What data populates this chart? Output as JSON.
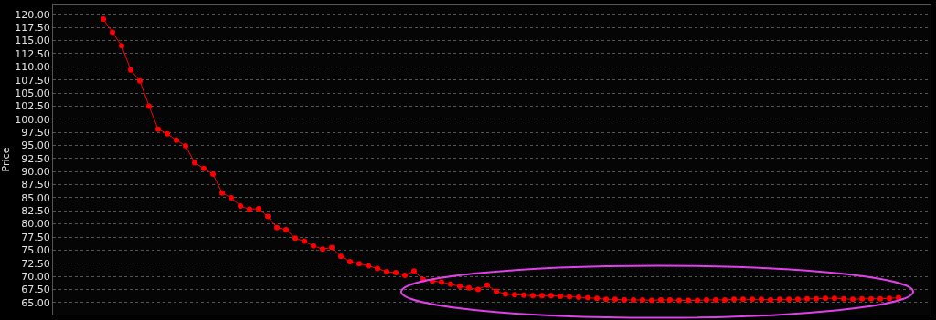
{
  "chart_data": {
    "type": "line",
    "ylabel": "Price",
    "marker": "circle",
    "line_style": "solid",
    "grid": "y",
    "tick_labels": "y",
    "ylim": [
      62.7,
      121.9
    ],
    "yticks": [
      {
        "value": 65,
        "label": "65.00"
      },
      {
        "value": 67.5,
        "label": "67.50"
      },
      {
        "value": 70,
        "label": "70.00"
      },
      {
        "value": 72.5,
        "label": "72.50"
      },
      {
        "value": 75,
        "label": "75.00"
      },
      {
        "value": 77.5,
        "label": "77.50"
      },
      {
        "value": 80,
        "label": "80.00"
      },
      {
        "value": 82.5,
        "label": "82.50"
      },
      {
        "value": 85,
        "label": "85.00"
      },
      {
        "value": 87.5,
        "label": "87.50"
      },
      {
        "value": 90,
        "label": "90.00"
      },
      {
        "value": 92.5,
        "label": "92.50"
      },
      {
        "value": 95,
        "label": "95.00"
      },
      {
        "value": 97.5,
        "label": "97.50"
      },
      {
        "value": 100,
        "label": "100.00"
      },
      {
        "value": 102.5,
        "label": "102.50"
      },
      {
        "value": 105,
        "label": "105.00"
      },
      {
        "value": 107.5,
        "label": "107.50"
      },
      {
        "value": 110,
        "label": "110.00"
      },
      {
        "value": 112.5,
        "label": "112.50"
      },
      {
        "value": 115,
        "label": "115.00"
      },
      {
        "value": 117.5,
        "label": "117.50"
      },
      {
        "value": 120,
        "label": "120.00"
      }
    ],
    "categories": [
      null,
      null,
      null,
      null,
      null,
      null,
      null,
      null,
      null,
      null,
      null,
      null,
      null,
      null,
      null,
      null,
      null,
      null,
      null,
      null,
      null,
      null,
      null,
      null,
      null,
      null,
      null,
      null,
      null,
      null,
      null,
      null,
      null,
      null,
      null,
      null,
      null,
      null,
      null,
      null,
      null,
      null,
      null,
      null,
      null,
      null,
      null,
      null,
      null,
      null,
      null,
      null,
      null,
      null,
      null,
      null,
      null,
      null,
      null,
      null,
      null,
      null,
      null,
      null,
      null,
      null,
      null,
      null,
      null,
      null,
      null,
      null,
      null,
      null,
      null,
      null,
      null,
      null,
      null,
      null,
      null,
      null,
      null,
      null,
      null,
      null,
      null,
      null
    ],
    "series": [
      {
        "color": "#ff0000",
        "values": [
          119.1,
          116.6,
          114.0,
          109.4,
          107.3,
          102.5,
          98.1,
          97.2,
          96.0,
          94.9,
          91.7,
          90.6,
          89.5,
          85.9,
          85.0,
          83.4,
          82.8,
          82.9,
          81.4,
          79.3,
          78.9,
          77.3,
          76.7,
          75.8,
          75.2,
          75.5,
          73.8,
          72.8,
          72.4,
          72.0,
          71.5,
          70.9,
          70.7,
          70.2,
          71.0,
          69.4,
          69.1,
          68.9,
          68.5,
          68.1,
          67.8,
          67.5,
          68.3,
          67.1,
          66.6,
          66.5,
          66.4,
          66.3,
          66.3,
          66.3,
          66.2,
          66.1,
          66.0,
          65.9,
          65.8,
          65.6,
          65.6,
          65.5,
          65.5,
          65.5,
          65.4,
          65.5,
          65.5,
          65.4,
          65.4,
          65.4,
          65.5,
          65.5,
          65.5,
          65.6,
          65.6,
          65.6,
          65.6,
          65.5,
          65.6,
          65.6,
          65.6,
          65.7,
          65.7,
          65.8,
          65.8,
          65.7,
          65.6,
          65.7,
          65.7,
          65.7,
          65.8,
          65.9
        ]
      }
    ]
  }
}
